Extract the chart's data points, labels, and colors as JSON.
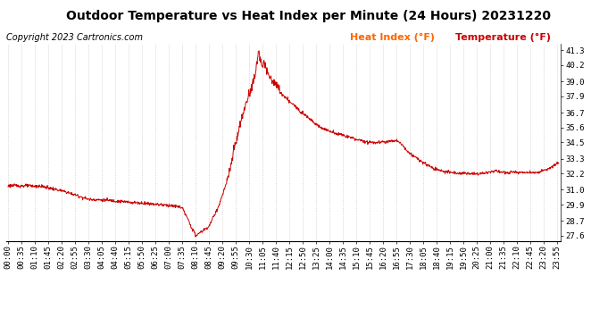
{
  "title": "Outdoor Temperature vs Heat Index per Minute (24 Hours) 20231220",
  "copyright": "Copyright 2023 Cartronics.com",
  "legend_heat": "Heat Index (°F)",
  "legend_temp": "Temperature (°F)",
  "y_ticks": [
    27.6,
    28.7,
    29.9,
    31.0,
    32.2,
    33.3,
    34.5,
    35.6,
    36.7,
    37.9,
    39.0,
    40.2,
    41.3
  ],
  "y_min": 27.2,
  "y_max": 41.8,
  "line_color": "#cc0000",
  "background_color": "#ffffff",
  "grid_color": "#bbbbbb",
  "title_color": "#000000",
  "copyright_color": "#000000",
  "legend_heat_color": "#ff6600",
  "legend_temp_color": "#cc0000",
  "title_fontsize": 10,
  "copyright_fontsize": 7,
  "legend_fontsize": 8,
  "tick_fontsize": 6.5,
  "x_tick_interval": 35
}
